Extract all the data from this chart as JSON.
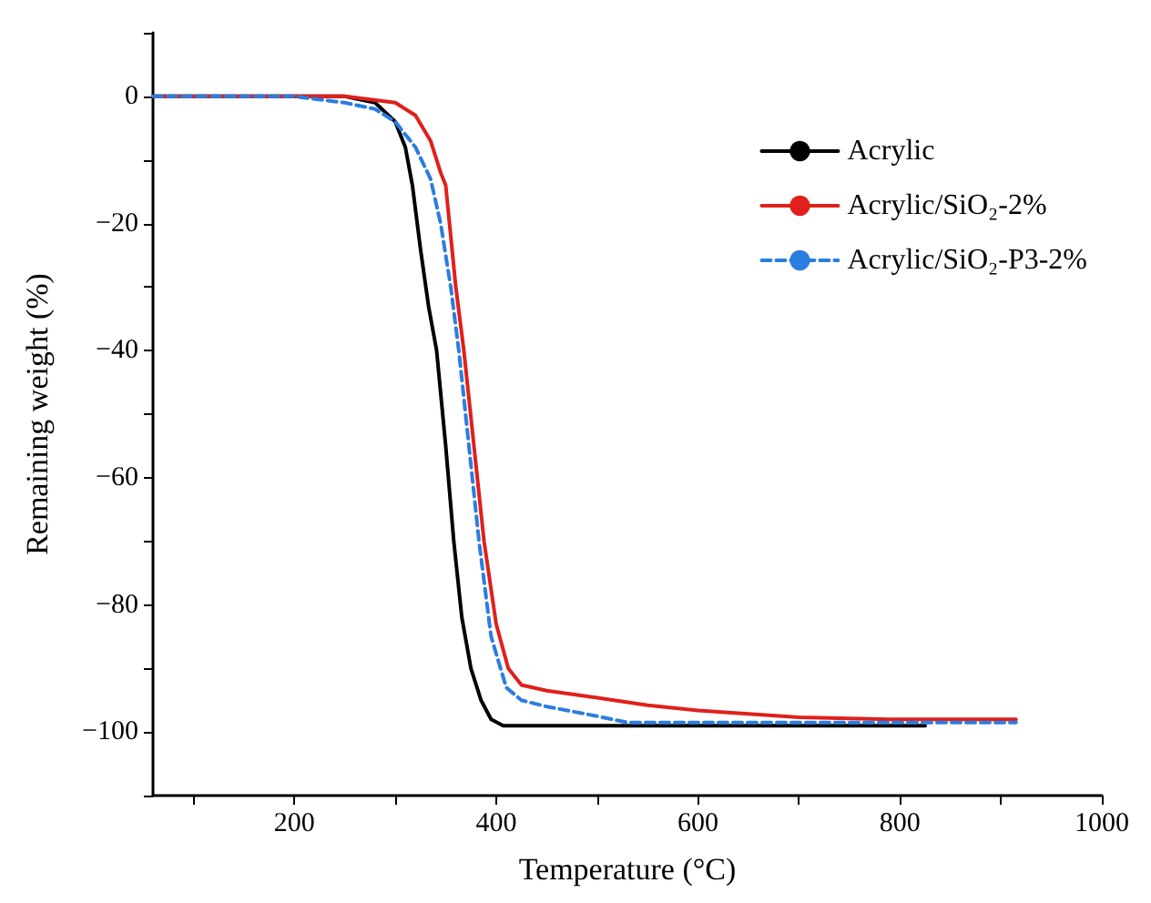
{
  "chart_data": {
    "type": "line",
    "xlabel": "Temperature (°C)",
    "ylabel": "Remaining weight (%)",
    "xlim": [
      60,
      1000
    ],
    "ylim": [
      -110,
      10
    ],
    "xticks": [
      {
        "value": 100,
        "label": null
      },
      200,
      {
        "value": 300,
        "label": null
      },
      400,
      {
        "value": 500,
        "label": null
      },
      600,
      {
        "value": 700,
        "label": null
      },
      800,
      {
        "value": 900,
        "label": null
      },
      1000
    ],
    "yticks": [
      {
        "value": -110,
        "label": null
      },
      -100,
      {
        "value": -90,
        "label": null
      },
      -80,
      {
        "value": -70,
        "label": null
      },
      -60,
      {
        "value": -50,
        "label": null
      },
      -40,
      {
        "value": -30,
        "label": null
      },
      -20,
      {
        "value": -10,
        "label": null
      },
      0,
      {
        "value": 10,
        "label": null
      }
    ],
    "grid": false,
    "legend": "top right",
    "marker": "none",
    "series": [
      {
        "name": "Acrylic",
        "color": "#000000",
        "line_style": "solid",
        "x": [
          60,
          250,
          280,
          300,
          310,
          317,
          325,
          333,
          341,
          350,
          358,
          366,
          375,
          385,
          395,
          407,
          600,
          825
        ],
        "values": [
          0,
          0,
          -1,
          -4,
          -8,
          -14,
          -24,
          -33,
          -40,
          -55,
          -70,
          -82,
          -90,
          -95,
          -98,
          -99,
          -99,
          -99
        ]
      },
      {
        "name": "Acrylic/SiO₂-2%",
        "color": "#e0201b",
        "line_style": "solid",
        "x": [
          60,
          250,
          300,
          320,
          335,
          345,
          350,
          360,
          368,
          378,
          388,
          400,
          412,
          425,
          450,
          500,
          550,
          600,
          700,
          790,
          915
        ],
        "values": [
          0,
          0,
          -1,
          -3,
          -7,
          -12,
          -14,
          -30,
          -40,
          -55,
          -70,
          -83,
          -90,
          -92.6,
          -93.5,
          -94.6,
          -95.8,
          -96.6,
          -97.7,
          -98,
          -98
        ]
      },
      {
        "name": "Acrylic/SiO₂-P3-2%",
        "color": "#2b7de0",
        "line_style": "dashed",
        "x": [
          60,
          200,
          250,
          280,
          300,
          320,
          335,
          345,
          355,
          363,
          373,
          383,
          395,
          410,
          425,
          450,
          500,
          530,
          700,
          915
        ],
        "values": [
          0,
          0,
          -1,
          -2,
          -4,
          -8,
          -13,
          -20,
          -30,
          -40,
          -55,
          -70,
          -85,
          -93,
          -95,
          -96,
          -97.5,
          -98.5,
          -98.5,
          -98.5
        ]
      }
    ]
  }
}
